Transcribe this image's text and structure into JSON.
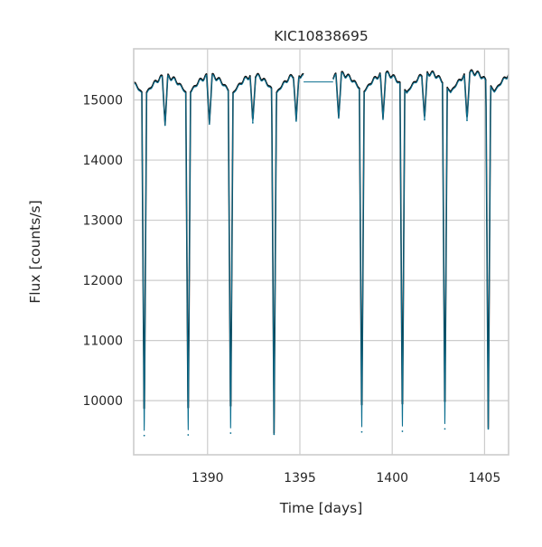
{
  "chart_data": {
    "type": "line",
    "title": "KIC10838695",
    "xlabel": "Time [days]",
    "ylabel": "Flux [counts/s]",
    "xlim": [
      1386.0,
      1406.3
    ],
    "ylim": [
      9100,
      15850
    ],
    "x_ticks": [
      1390,
      1395,
      1400,
      1405
    ],
    "y_ticks": [
      10000,
      11000,
      12000,
      13000,
      14000,
      15000
    ],
    "grid": true,
    "legend": "none",
    "colors": {
      "series": "#0a6e8f",
      "overlay": "#111111"
    },
    "baseline_flux": 15050,
    "ellipse_amplitude": 320,
    "orbital_period_days": 2.37,
    "data_gap": [
      1395.2,
      1396.8
    ],
    "gap_flux": 15300,
    "primary_eclipses": [
      {
        "time": 1386.57,
        "min_flux": 9420
      },
      {
        "time": 1388.95,
        "min_flux": 9430
      },
      {
        "time": 1391.25,
        "min_flux": 9460
      },
      {
        "time": 1393.6,
        "min_flux": 9440
      },
      {
        "time": 1398.35,
        "min_flux": 9480
      },
      {
        "time": 1400.55,
        "min_flux": 9490
      },
      {
        "time": 1402.85,
        "min_flux": 9530
      },
      {
        "time": 1405.2,
        "min_flux": 9530
      }
    ],
    "secondary_eclipses": [
      {
        "time": 1387.7,
        "min_flux": 14580
      },
      {
        "time": 1390.1,
        "min_flux": 14600
      },
      {
        "time": 1392.45,
        "min_flux": 14620
      },
      {
        "time": 1394.8,
        "min_flux": 14650
      },
      {
        "time": 1397.1,
        "min_flux": 14700
      },
      {
        "time": 1399.5,
        "min_flux": 14680
      },
      {
        "time": 1401.75,
        "min_flux": 14670
      },
      {
        "time": 1404.05,
        "min_flux": 14660
      }
    ]
  }
}
